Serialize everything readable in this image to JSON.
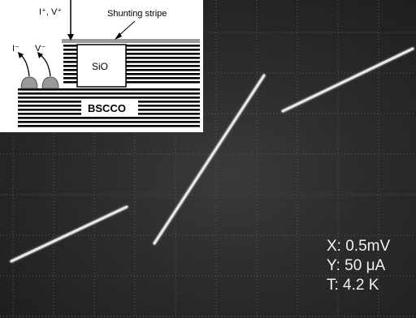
{
  "inset": {
    "current_voltage_top": "I⁺, V⁺",
    "current_minus": "I⁻",
    "voltage_minus": "V⁻",
    "shunting_stripe": "Shunting stripe",
    "sio_label": "SiO",
    "bscco_label": "BSCCO"
  },
  "readout": {
    "x_scale": "X: 0.5mV",
    "y_scale": "Y: 50 μA",
    "temperature": "T: 4.2 K"
  },
  "trace_color": "#e8e8e8",
  "grid_color": "#5a5a5a"
}
